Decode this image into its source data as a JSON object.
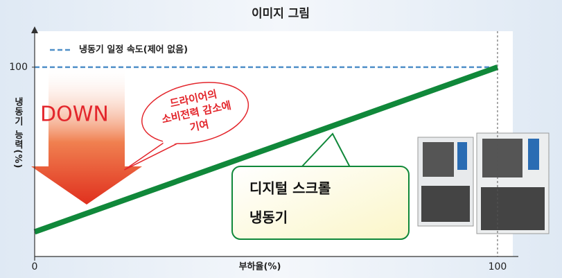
{
  "chart_data": {
    "type": "line",
    "title": "이미지 그림",
    "x_label": "부하율(%)",
    "y_label": "냉동기 능력(%)",
    "x": [
      0,
      100
    ],
    "xlim": [
      0,
      103.3
    ],
    "ylim": [
      0,
      119
    ],
    "xticks": [
      0,
      100
    ],
    "yticks": [
      100
    ],
    "legend": "top-left",
    "series": [
      {
        "name": "냉동기 일정 속도(제어 없음)",
        "color": "#4f8fc8",
        "dashed": true,
        "values": [
          100,
          100
        ]
      },
      {
        "label_lines": [
          "디지털 스크롤",
          "냉동기"
        ],
        "color": "#10883a",
        "dashed": false,
        "values": [
          13,
          100
        ]
      }
    ],
    "annotations": {
      "down": "DOWN",
      "bubble_lines": [
        "드라이어의",
        "소비전력 감소에",
        "기여"
      ]
    }
  }
}
